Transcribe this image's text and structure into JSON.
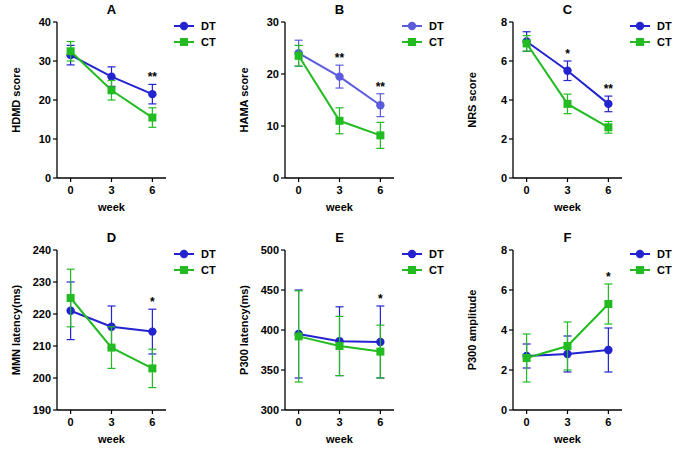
{
  "chart_data": [
    {
      "type": "line",
      "title": "A",
      "x_label": "week",
      "y_label": "HDMD score",
      "x": [
        0,
        3,
        6
      ],
      "xlim": [
        -1,
        7
      ],
      "xticks": [
        0,
        3,
        6
      ],
      "ylim": [
        0,
        40
      ],
      "yticks": [
        0,
        10,
        20,
        30,
        40
      ],
      "legend": "top-right",
      "series": [
        {
          "name": "DT",
          "color": "#2323d0",
          "marker": "circle",
          "values": [
            31.5,
            26,
            21.5
          ],
          "errors": [
            2.5,
            2.5,
            2.5
          ]
        },
        {
          "name": "CT",
          "color": "#22bb22",
          "marker": "square",
          "values": [
            32.5,
            22.5,
            15.5
          ],
          "errors": [
            2.5,
            2.5,
            2.5
          ]
        }
      ],
      "annotations": [
        {
          "x": 6,
          "text": "**"
        }
      ]
    },
    {
      "type": "line",
      "title": "B",
      "x_label": "week",
      "y_label": "HAMA score",
      "x": [
        0,
        3,
        6
      ],
      "xlim": [
        -1,
        7
      ],
      "xticks": [
        0,
        3,
        6
      ],
      "ylim": [
        0,
        30
      ],
      "yticks": [
        0,
        10,
        20,
        30
      ],
      "legend": "top-right",
      "series": [
        {
          "name": "DT",
          "color": "#5b5bdc",
          "marker": "circle",
          "values": [
            24,
            19.5,
            14
          ],
          "errors": [
            2.5,
            2.2,
            2.2
          ]
        },
        {
          "name": "CT",
          "color": "#22bb22",
          "marker": "square",
          "values": [
            23.5,
            11,
            8.2
          ],
          "errors": [
            2,
            2.5,
            2.5
          ]
        }
      ],
      "annotations": [
        {
          "x": 3,
          "text": "**"
        },
        {
          "x": 6,
          "text": "**"
        }
      ]
    },
    {
      "type": "line",
      "title": "C",
      "x_label": "week",
      "y_label": "NRS score",
      "x": [
        0,
        3,
        6
      ],
      "xlim": [
        -1,
        7
      ],
      "xticks": [
        0,
        3,
        6
      ],
      "ylim": [
        0,
        8
      ],
      "yticks": [
        0,
        2,
        4,
        6,
        8
      ],
      "legend": "top-right",
      "series": [
        {
          "name": "DT",
          "color": "#2323d0",
          "marker": "circle",
          "values": [
            7,
            5.5,
            3.8
          ],
          "errors": [
            0.5,
            0.5,
            0.4
          ]
        },
        {
          "name": "CT",
          "color": "#22bb22",
          "marker": "square",
          "values": [
            6.9,
            3.8,
            2.6
          ],
          "errors": [
            0.4,
            0.5,
            0.3
          ]
        }
      ],
      "annotations": [
        {
          "x": 3,
          "text": "*"
        },
        {
          "x": 6,
          "text": "**"
        }
      ]
    },
    {
      "type": "line",
      "title": "D",
      "x_label": "week",
      "y_label": "MMN latency(ms)",
      "x": [
        0,
        3,
        6
      ],
      "xlim": [
        -1,
        7
      ],
      "xticks": [
        0,
        3,
        6
      ],
      "ylim": [
        190,
        240
      ],
      "yticks": [
        190,
        200,
        210,
        220,
        230,
        240
      ],
      "legend": "top-right",
      "series": [
        {
          "name": "DT",
          "color": "#2323d0",
          "marker": "circle",
          "values": [
            221,
            216,
            214.5
          ],
          "errors": [
            9,
            6.5,
            7
          ]
        },
        {
          "name": "CT",
          "color": "#22bb22",
          "marker": "square",
          "values": [
            225,
            209.5,
            203
          ],
          "errors": [
            9,
            6.5,
            6
          ]
        }
      ],
      "annotations": [
        {
          "x": 6,
          "text": "*"
        }
      ]
    },
    {
      "type": "line",
      "title": "E",
      "x_label": "week",
      "y_label": "P300 latency(ms)",
      "x": [
        0,
        3,
        6
      ],
      "xlim": [
        -1,
        7
      ],
      "xticks": [
        0,
        3,
        6
      ],
      "ylim": [
        300,
        500
      ],
      "yticks": [
        300,
        350,
        400,
        450,
        500
      ],
      "legend": "top-right",
      "series": [
        {
          "name": "DT",
          "color": "#2323d0",
          "marker": "circle",
          "values": [
            395,
            386,
            385
          ],
          "errors": [
            55,
            43,
            45
          ]
        },
        {
          "name": "CT",
          "color": "#22bb22",
          "marker": "square",
          "values": [
            392,
            380,
            373
          ],
          "errors": [
            57,
            37,
            33
          ]
        }
      ],
      "annotations": [
        {
          "x": 6,
          "text": "*"
        }
      ]
    },
    {
      "type": "line",
      "title": "F",
      "x_label": "week",
      "y_label": "P300 amplitude",
      "x": [
        0,
        3,
        6
      ],
      "xlim": [
        -1,
        7
      ],
      "xticks": [
        0,
        3,
        6
      ],
      "ylim": [
        0,
        8
      ],
      "yticks": [
        0,
        2,
        4,
        6,
        8
      ],
      "legend": "top-right",
      "series": [
        {
          "name": "DT",
          "color": "#2323d0",
          "marker": "circle",
          "values": [
            2.7,
            2.8,
            3.0
          ],
          "errors": [
            0.6,
            0.9,
            1.1
          ]
        },
        {
          "name": "CT",
          "color": "#22bb22",
          "marker": "square",
          "values": [
            2.6,
            3.2,
            5.3
          ],
          "errors": [
            1.2,
            1.2,
            1.0
          ]
        }
      ],
      "annotations": [
        {
          "x": 6,
          "text": "*"
        }
      ]
    }
  ]
}
